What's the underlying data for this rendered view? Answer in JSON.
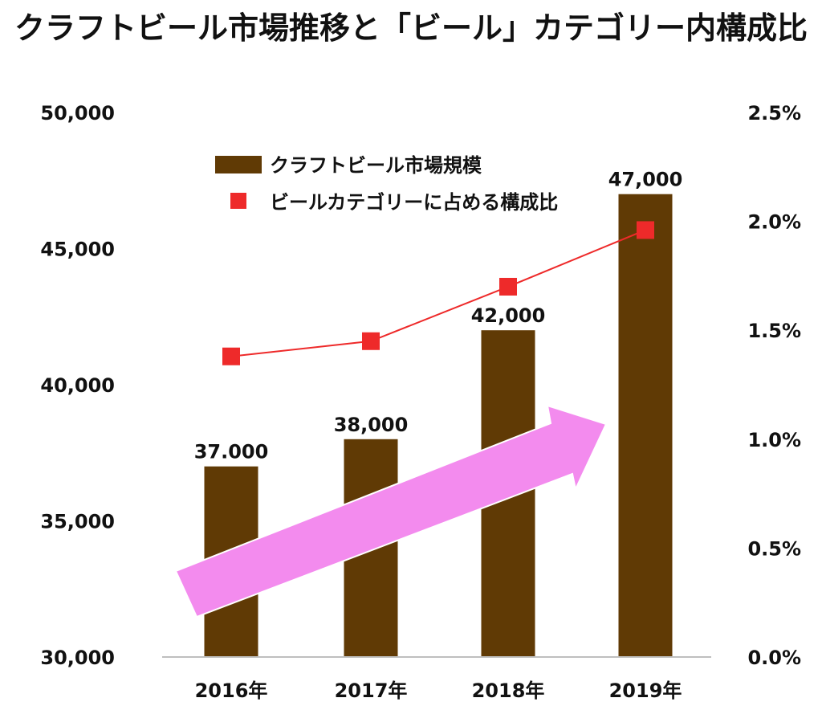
{
  "chart_data": {
    "type": "bar",
    "title": "クラフトビール市場推移と「ビール」カテゴリー内構成比",
    "categories": [
      "2016年",
      "2017年",
      "2018年",
      "2019年"
    ],
    "series": [
      {
        "name": "クラフトビール市場規模",
        "type": "bar",
        "axis": "left",
        "color": "#603a05",
        "values": [
          37000,
          38000,
          42000,
          47000
        ],
        "labels": [
          "37.000",
          "38,000",
          "42,000",
          "47,000"
        ]
      },
      {
        "name": "ビールカテゴリーに占める構成比",
        "type": "line",
        "axis": "right",
        "color": "#ee2a2a",
        "values": [
          1.38,
          1.45,
          1.7,
          1.96
        ]
      }
    ],
    "y_left": {
      "range": [
        30000,
        50000
      ],
      "ticks": [
        30000,
        35000,
        40000,
        45000,
        50000
      ],
      "tick_labels": [
        "30,000",
        "35,000",
        "40,000",
        "45,000",
        "50,000"
      ]
    },
    "y_right": {
      "range": [
        0,
        2.5
      ],
      "ticks": [
        0,
        0.5,
        1.0,
        1.5,
        2.0,
        2.5
      ],
      "tick_labels": [
        "0.0%",
        "0.5%",
        "1.0%",
        "1.5%",
        "2.0%",
        "2.5%"
      ]
    },
    "xlabel": "",
    "grid": false,
    "legend_position": "top-left",
    "annotation": "pink upward trend arrow"
  }
}
